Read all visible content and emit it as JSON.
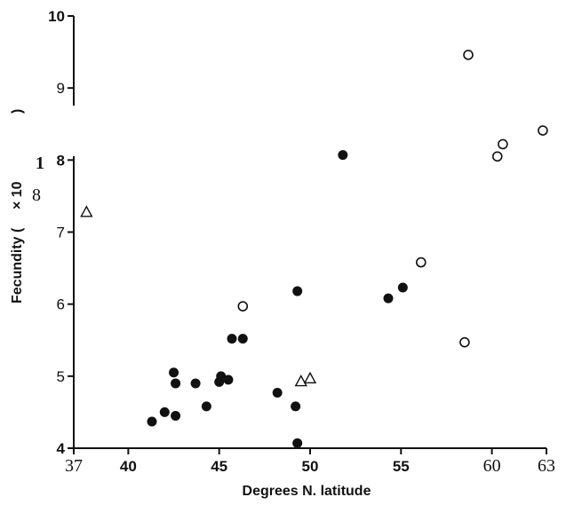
{
  "chart_data": {
    "type": "scatter",
    "xlabel": "Degrees N. latitude",
    "ylabel": "Fecundity (",
    "ylabel_fragment": ")",
    "ylabel_garble": "× 10",
    "stray_marks": [
      "1",
      "8"
    ],
    "xlim": [
      37,
      63
    ],
    "ylim": [
      4,
      10
    ],
    "xticks": [
      "37",
      "40",
      "45",
      "50",
      "55",
      "60",
      "63"
    ],
    "yticks": [
      "4",
      "5",
      "6",
      "7",
      "8",
      "9",
      "10"
    ],
    "grid": false,
    "series": [
      {
        "marker": "filled-circle",
        "points": [
          [
            41.3,
            4.37
          ],
          [
            42.0,
            4.5
          ],
          [
            42.5,
            5.05
          ],
          [
            42.6,
            4.9
          ],
          [
            42.6,
            4.45
          ],
          [
            43.7,
            4.9
          ],
          [
            44.3,
            4.58
          ],
          [
            45.0,
            4.92
          ],
          [
            45.1,
            5.0
          ],
          [
            45.5,
            4.95
          ],
          [
            45.7,
            5.52
          ],
          [
            46.3,
            5.52
          ],
          [
            48.2,
            4.77
          ],
          [
            49.2,
            4.58
          ],
          [
            49.3,
            6.18
          ],
          [
            49.3,
            4.07
          ],
          [
            51.8,
            8.07
          ],
          [
            54.3,
            6.08
          ],
          [
            55.1,
            6.23
          ]
        ]
      },
      {
        "marker": "open-circle",
        "points": [
          [
            46.3,
            5.97
          ],
          [
            56.1,
            6.58
          ],
          [
            58.5,
            5.47
          ],
          [
            58.7,
            9.46
          ],
          [
            60.3,
            8.05
          ],
          [
            60.6,
            8.22
          ],
          [
            62.8,
            8.41
          ]
        ]
      },
      {
        "marker": "open-triangle",
        "points": [
          [
            37.7,
            7.28
          ],
          [
            49.5,
            4.93
          ],
          [
            50.0,
            4.97
          ]
        ]
      }
    ]
  }
}
